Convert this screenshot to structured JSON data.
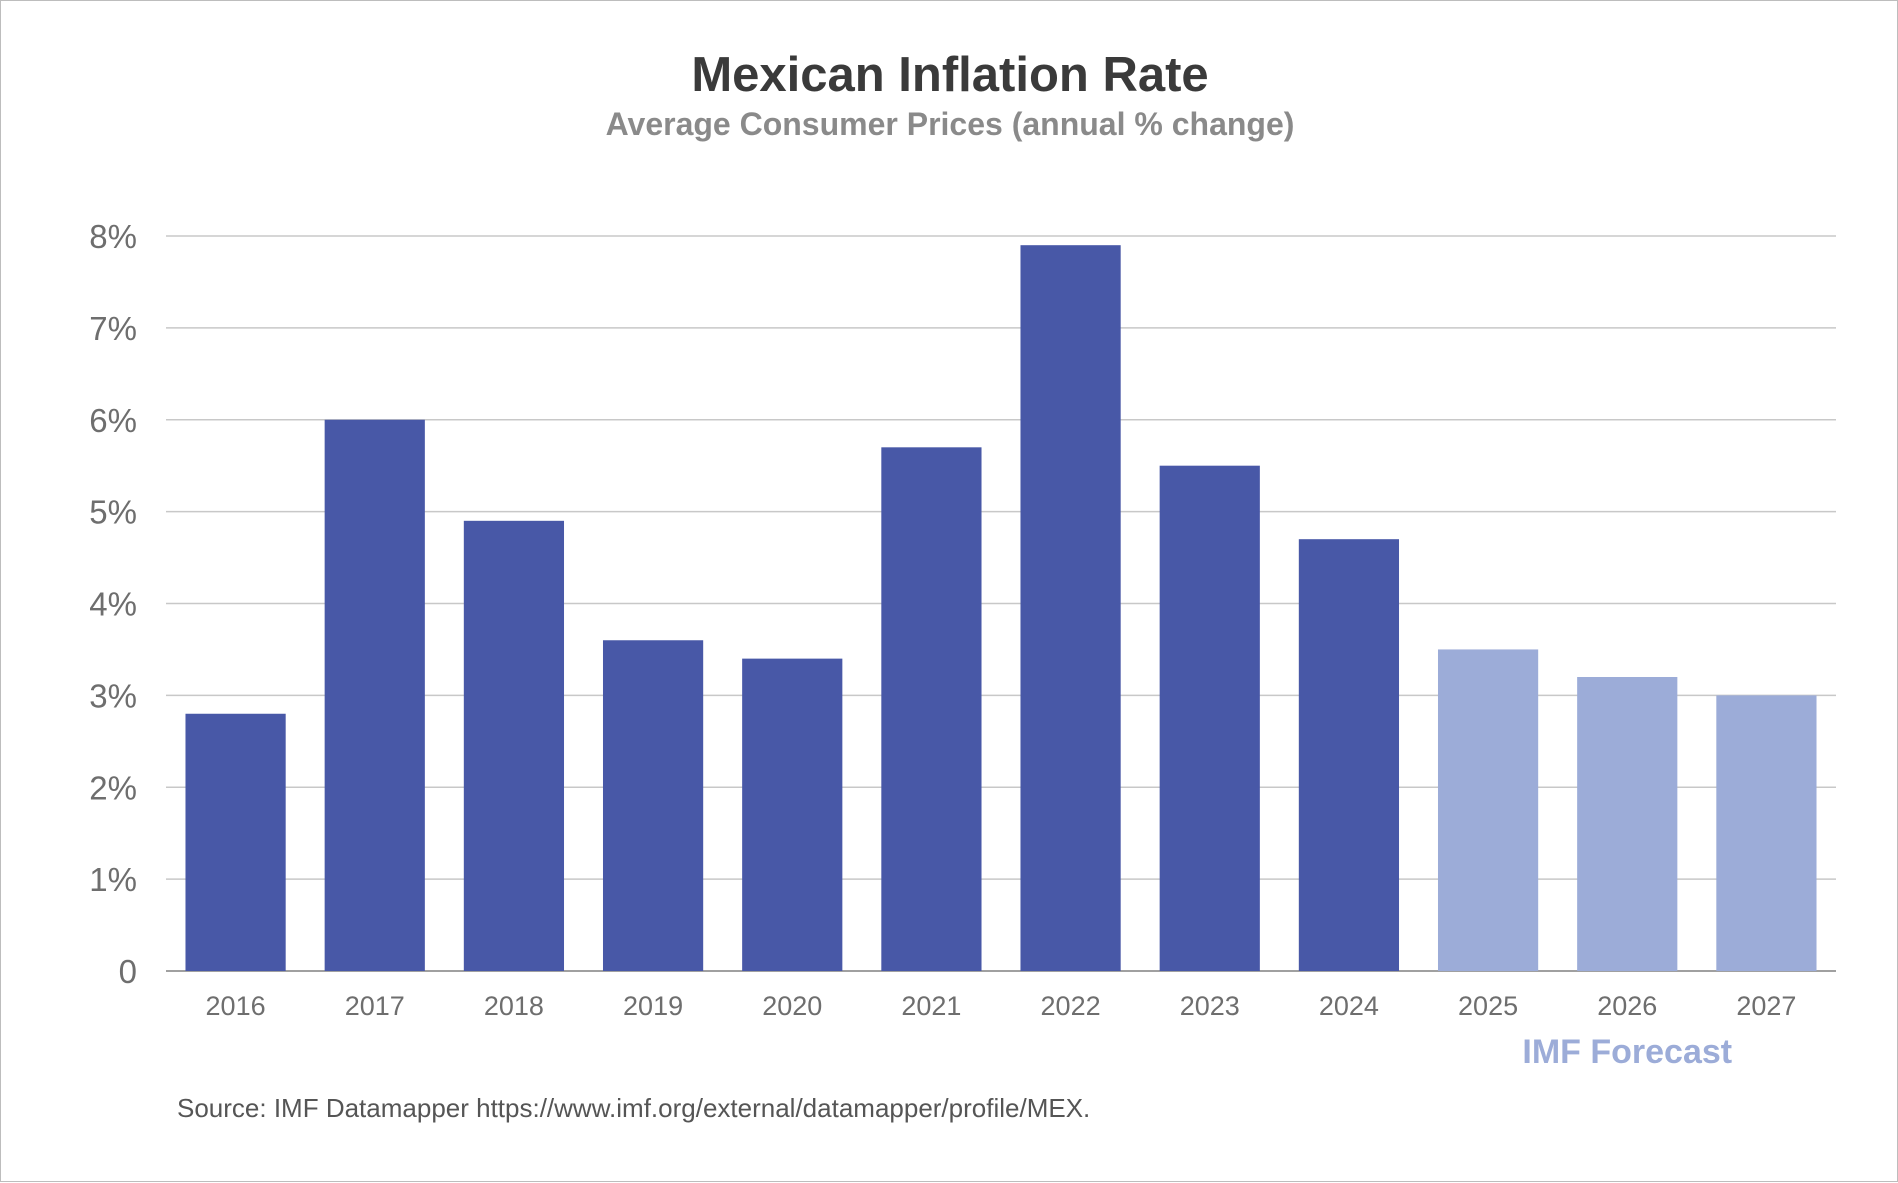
{
  "chart_data": {
    "type": "bar",
    "title": "Mexican Inflation Rate",
    "subtitle": "Average Consumer Prices (annual % change)",
    "xlabel": "",
    "ylabel": "",
    "categories": [
      "2016",
      "2017",
      "2018",
      "2019",
      "2020",
      "2021",
      "2022",
      "2023",
      "2024",
      "2025",
      "2026",
      "2027"
    ],
    "values": [
      2.8,
      6.0,
      4.9,
      3.6,
      3.4,
      5.7,
      7.9,
      5.5,
      4.7,
      3.5,
      3.2,
      3.0
    ],
    "forecast_from": "2025",
    "ylim": [
      0,
      8
    ],
    "yticks": [
      0,
      1,
      2,
      3,
      4,
      5,
      6,
      7,
      8
    ],
    "ytick_labels": [
      "0",
      "1%",
      "2%",
      "3%",
      "4%",
      "5%",
      "6%",
      "7%",
      "8%"
    ],
    "grid": true,
    "annotation": "IMF Forecast",
    "source": "Source: IMF Datamapper https://www.imf.org/external/datamapper/profile/MEX.",
    "colors": {
      "actual": "#4858a7",
      "forecast": "#9cacd8",
      "grid": "#c8c8c8",
      "axis": "#a0a0a0",
      "annotation": "#9cacd8"
    }
  }
}
